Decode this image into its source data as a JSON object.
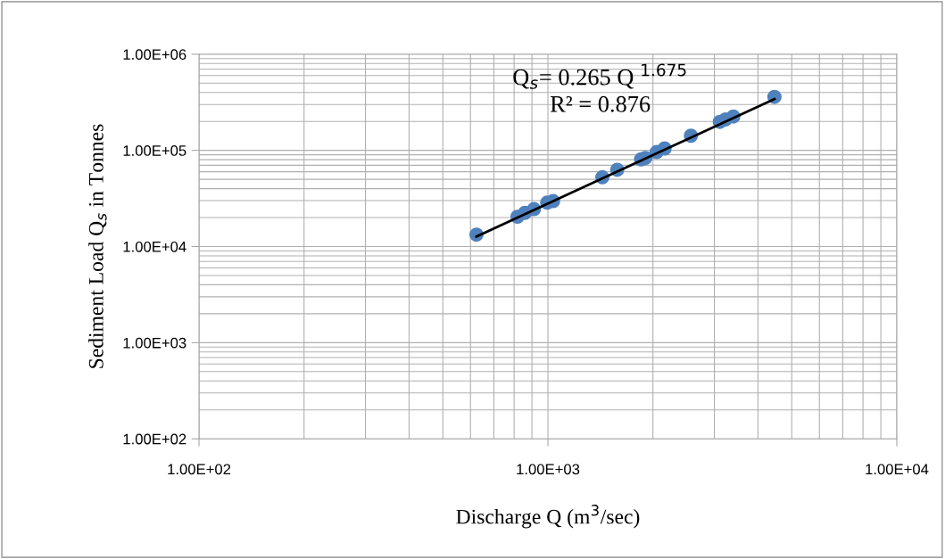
{
  "chart_data": {
    "type": "scatter",
    "xlabel": "Discharge Q (m$^{3}$/sec)",
    "ylabel": "Sediment Load Q$_{s}$ in Tonnes",
    "log": "xy",
    "grid": true,
    "marker": "circle",
    "legend": false,
    "xlim": [
      100,
      10000
    ],
    "xticks": [
      {
        "value": 100,
        "label": "1.00E+02"
      },
      {
        "value": 1000,
        "label": "1.00E+03"
      },
      {
        "value": 10000,
        "label": "1.00E+04"
      }
    ],
    "ylim": [
      100,
      1000000
    ],
    "yticks": [
      {
        "value": 100,
        "label": "1.00E+02"
      },
      {
        "value": 1000,
        "label": "1.00E+03"
      },
      {
        "value": 10000,
        "label": "1.00E+04"
      },
      {
        "value": 100000,
        "label": "1.00E+05"
      },
      {
        "value": 1000000,
        "label": "1.00E+06"
      }
    ],
    "annotations": [
      "Q$_{s}$= 0.265 Q $^{1.675}$",
      "R² = 0.876"
    ],
    "series": [
      {
        "color": "#4f81bd",
        "x": [
          624,
          818,
          859,
          912,
          995,
          1035,
          1432,
          1580,
          1850,
          1903,
          2050,
          2160,
          2570,
          3110,
          3230,
          3400,
          4460
        ],
        "values": [
          13300,
          20400,
          22400,
          24500,
          28600,
          29700,
          52500,
          62800,
          80600,
          83400,
          96100,
          104700,
          142000,
          198000,
          210000,
          225000,
          360000
        ]
      },
      {
        "type": "line",
        "color": "#000000",
        "marker": "none",
        "x": [
          624,
          4460
        ],
        "values": [
          12700,
          342000
        ]
      }
    ]
  }
}
